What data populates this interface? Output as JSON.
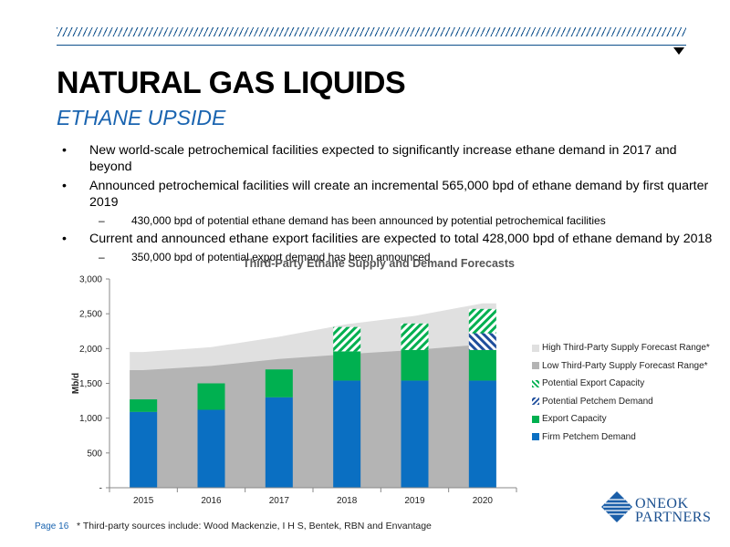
{
  "header": {
    "title": "NATURAL GAS LIQUIDS",
    "subtitle": "ETHANE UPSIDE"
  },
  "bullets": [
    {
      "text": "New world-scale petrochemical facilities expected to significantly increase ethane demand in 2017 and beyond",
      "sub": []
    },
    {
      "text": "Announced petrochemical facilities will create an incremental 565,000 bpd of ethane demand by first quarter 2019",
      "sub": [
        "430,000 bpd of potential ethane demand has been announced by potential petrochemical facilities"
      ]
    },
    {
      "text": "Current and announced ethane export facilities are expected to total 428,000 bpd of ethane demand by 2018",
      "sub": [
        "350,000 bpd of potential export demand has been announced"
      ]
    }
  ],
  "dash": "–",
  "footer": {
    "page": "Page 16",
    "note": "* Third-party sources include: Wood Mackenzie, I H S, Bentek, RBN and Envantage"
  },
  "logo": {
    "line1": "ONEOK",
    "line2": "PARTNERS"
  },
  "chart_data": {
    "type": "bar",
    "title": "Third-Party Ethane Supply and Demand Forecasts",
    "ylabel": "Mb/d",
    "xlabel": "",
    "ylim": [
      0,
      3000
    ],
    "yticks": [
      0,
      500,
      1000,
      1500,
      2000,
      2500,
      3000
    ],
    "ytick_labels": [
      "-",
      "500",
      "1,000",
      "1,500",
      "2,000",
      "2,500",
      "3,000"
    ],
    "categories": [
      "2015",
      "2016",
      "2017",
      "2018",
      "2019",
      "2020"
    ],
    "stacked": true,
    "series": [
      {
        "name": "Firm Petchem Demand",
        "color": "#0a6fc2",
        "pattern": "solid",
        "values": [
          1090,
          1120,
          1300,
          1540,
          1540,
          1540
        ]
      },
      {
        "name": "Export Capacity",
        "color": "#00b050",
        "pattern": "solid",
        "values": [
          180,
          380,
          400,
          420,
          440,
          440
        ]
      },
      {
        "name": "Potential Petchem Demand",
        "color": "#1f4e9c",
        "pattern": "hatch",
        "values": [
          0,
          0,
          0,
          0,
          0,
          240
        ]
      },
      {
        "name": "Potential Export Capacity",
        "color": "#00b050",
        "pattern": "hatch",
        "values": [
          0,
          0,
          0,
          350,
          380,
          350
        ]
      }
    ],
    "area_series": [
      {
        "name": "High Third-Party Supply Forecast Range*",
        "color": "#e0e0e0",
        "values": [
          1950,
          2020,
          2170,
          2350,
          2470,
          2650
        ]
      },
      {
        "name": "Low Third-Party Supply Forecast Range*",
        "color": "#b4b4b4",
        "values": [
          1690,
          1750,
          1850,
          1920,
          1980,
          2060
        ]
      }
    ],
    "legend": [
      {
        "name": "High Third-Party Supply Forecast Range*",
        "color": "#e0e0e0",
        "pattern": "solid"
      },
      {
        "name": "Low Third-Party Supply Forecast Range*",
        "color": "#b4b4b4",
        "pattern": "solid"
      },
      {
        "name": "Potential Export Capacity",
        "color": "#00b050",
        "pattern": "hatch"
      },
      {
        "name": "Potential Petchem Demand",
        "color": "#1f4e9c",
        "pattern": "hatch"
      },
      {
        "name": "Export Capacity",
        "color": "#00b050",
        "pattern": "solid"
      },
      {
        "name": "Firm Petchem Demand",
        "color": "#0a6fc2",
        "pattern": "solid"
      }
    ],
    "legend_position": "right",
    "grid": false
  }
}
